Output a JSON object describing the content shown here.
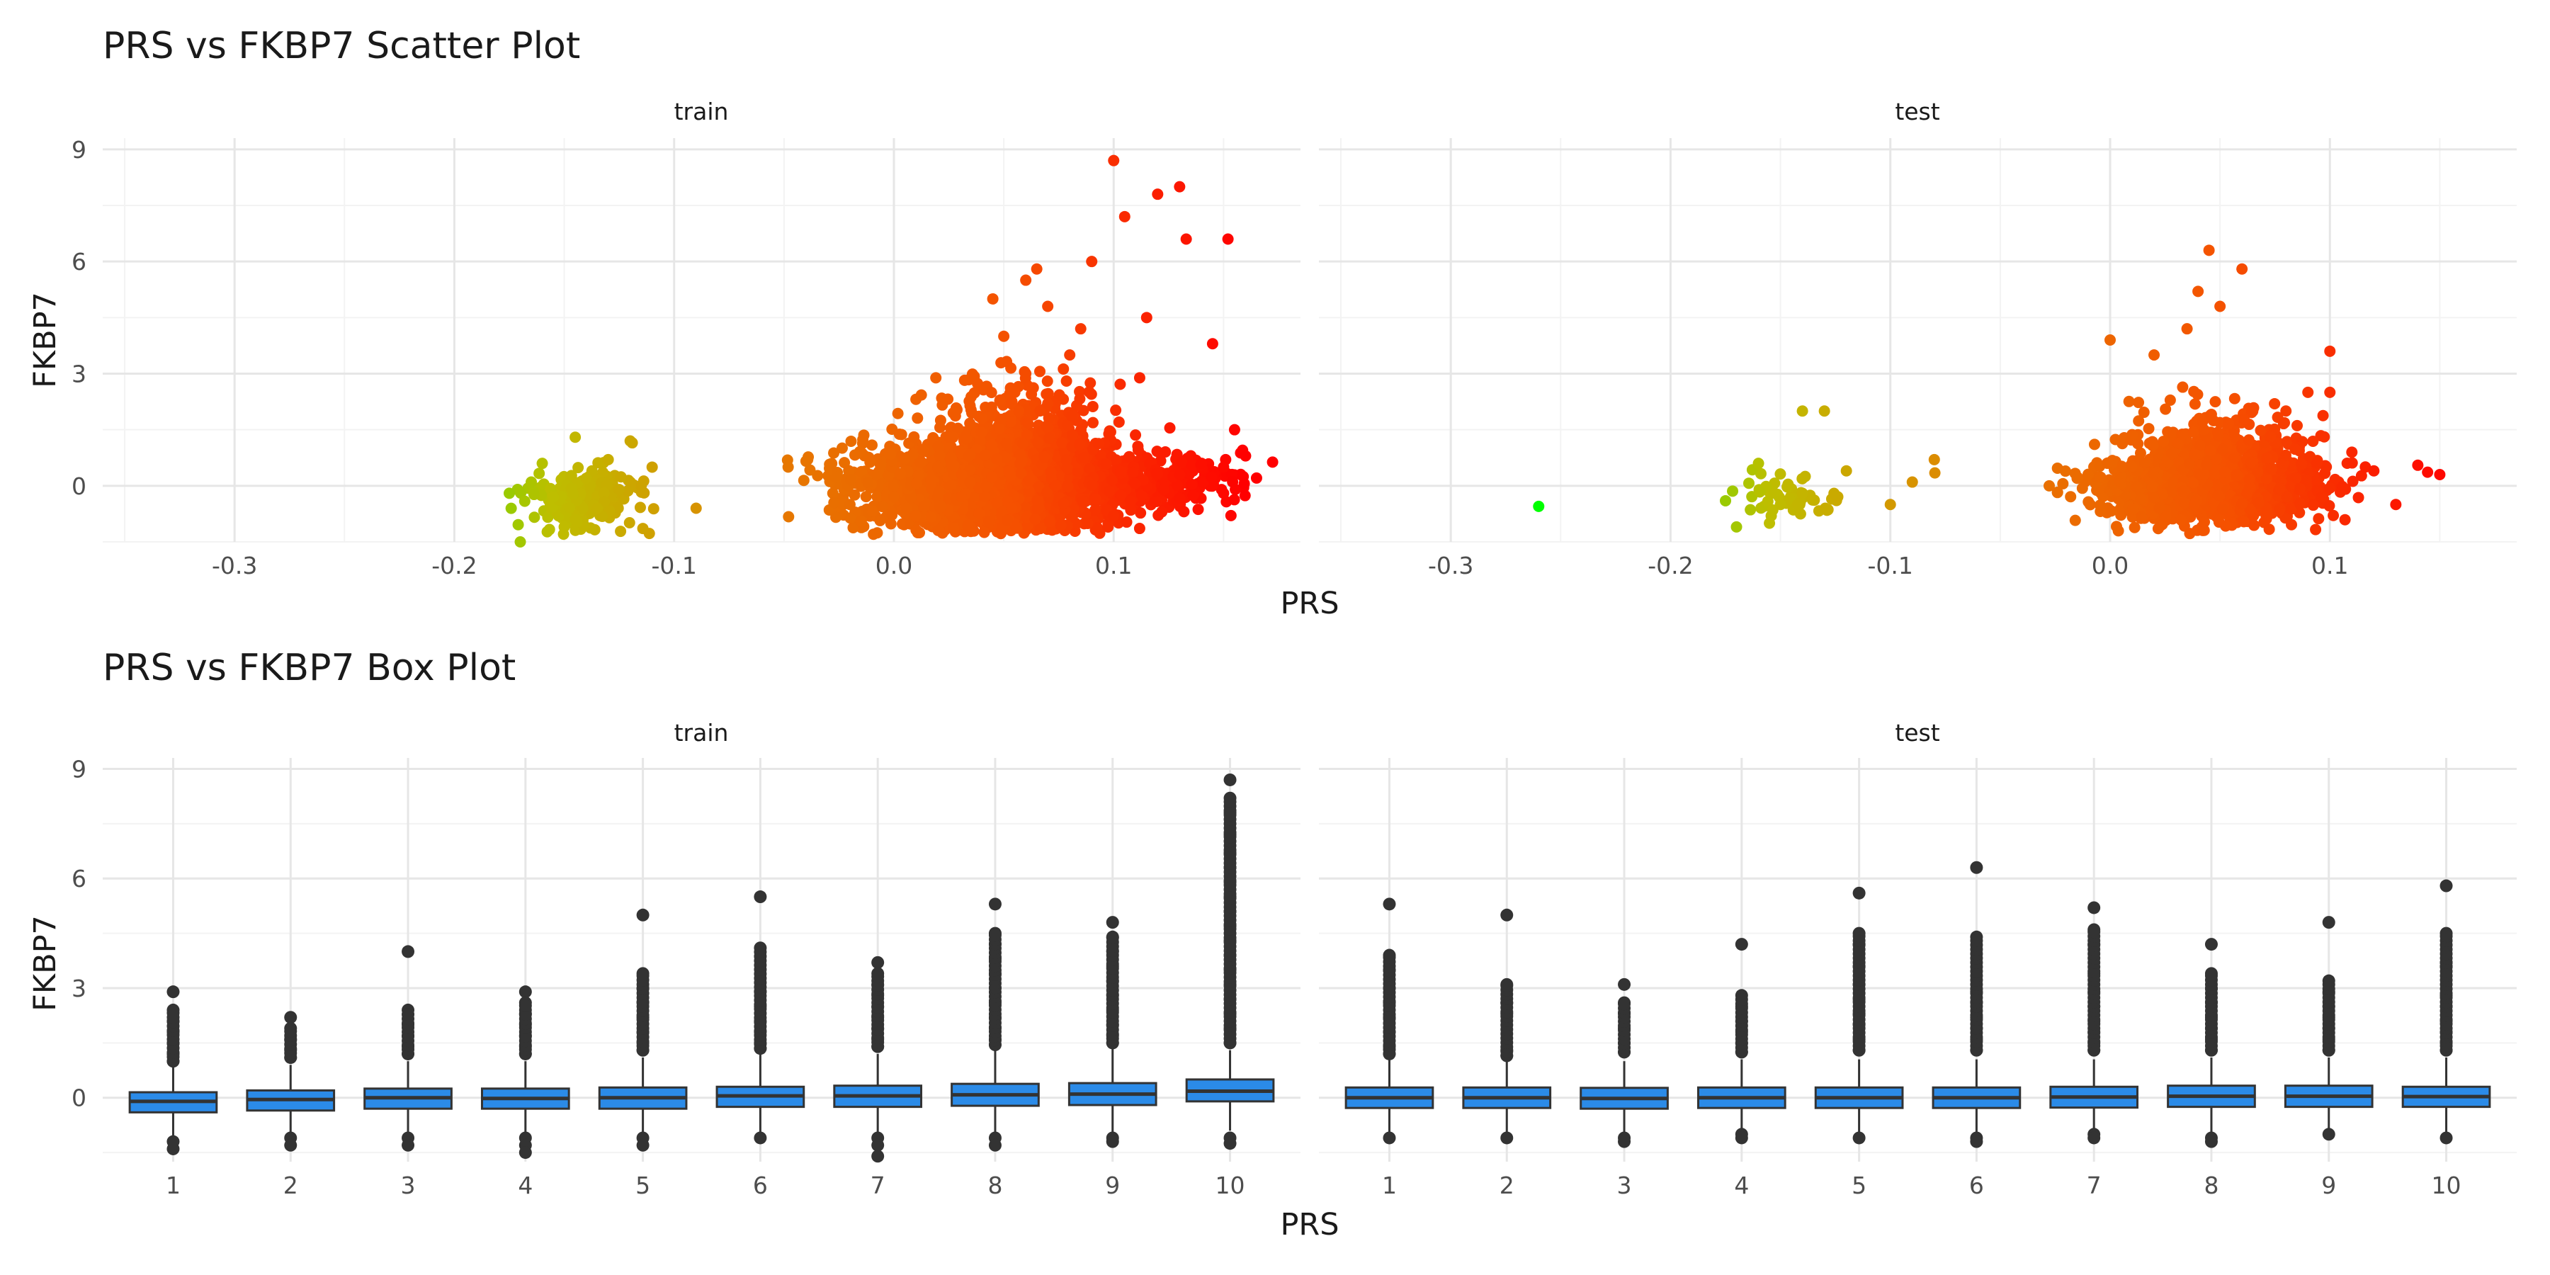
{
  "colors": {
    "grid_major": "#e6e6e6",
    "grid_minor": "#f3f3f3",
    "box_fill": "#2b8be8",
    "box_line": "#333333",
    "outlier": "#333333",
    "gradient": [
      "#00ff00",
      "#bebe00",
      "#e67800",
      "#f55000",
      "#ff0000"
    ]
  },
  "chart_data": [
    {
      "type": "scatter",
      "title": "PRS vs FKBP7 Scatter Plot",
      "xlabel": "PRS",
      "ylabel": "FKBP7",
      "xlim": [
        -0.36,
        0.185
      ],
      "ylim": [
        -1.5,
        9.3
      ],
      "x_ticks": [
        -0.3,
        -0.2,
        -0.1,
        0.0,
        0.1
      ],
      "x_tick_labels": [
        "-0.3",
        "-0.2",
        "-0.1",
        "0.0",
        "0.1"
      ],
      "y_ticks": [
        0,
        3,
        6,
        9
      ],
      "y_tick_labels": [
        "0",
        "3",
        "6",
        "9"
      ],
      "color_by": "PRS",
      "color_range": [
        -0.26,
        0.16
      ],
      "grid": true,
      "legend": "none",
      "panels": [
        {
          "name": "train",
          "points": [
            [
              -0.145,
              1.3
            ],
            [
              -0.12,
              1.2
            ],
            [
              -0.16,
              0.6
            ],
            [
              -0.13,
              0.7
            ],
            [
              -0.175,
              -0.2
            ],
            [
              -0.17,
              -1.5
            ],
            [
              -0.15,
              -1.1
            ],
            [
              -0.11,
              0.5
            ],
            [
              -0.09,
              -0.6
            ],
            [
              -0.14,
              0.2
            ],
            [
              -0.155,
              -0.3
            ],
            [
              -0.125,
              -0.1
            ],
            [
              -0.135,
              -0.6
            ],
            [
              -0.165,
              0.1
            ],
            [
              -0.145,
              -0.9
            ],
            [
              -0.115,
              0.0
            ],
            [
              -0.0,
              -0.3
            ],
            [
              0.02,
              0.5
            ],
            [
              0.04,
              1.8
            ],
            [
              0.055,
              2.5
            ],
            [
              0.06,
              3.0
            ],
            [
              0.07,
              2.2
            ],
            [
              0.05,
              4.0
            ],
            [
              0.045,
              5.0
            ],
            [
              0.06,
              5.5
            ],
            [
              0.07,
              4.8
            ],
            [
              0.085,
              4.2
            ],
            [
              0.09,
              6.0
            ],
            [
              0.1,
              8.7
            ],
            [
              0.105,
              7.2
            ],
            [
              0.12,
              7.8
            ],
            [
              0.13,
              8.0
            ],
            [
              0.133,
              6.6
            ],
            [
              0.152,
              6.6
            ],
            [
              0.145,
              3.8
            ],
            [
              0.115,
              4.5
            ],
            [
              0.15,
              0.5
            ],
            [
              0.155,
              1.5
            ],
            [
              0.16,
              0.8
            ],
            [
              0.14,
              0.6
            ],
            [
              0.13,
              0.3
            ],
            [
              -0.02,
              -0.5
            ],
            [
              0.1,
              -0.8
            ],
            [
              0.15,
              -0.2
            ],
            [
              0.08,
              3.5
            ],
            [
              0.065,
              5.8
            ]
          ]
        },
        {
          "name": "test",
          "points": [
            [
              -0.26,
              -0.55
            ],
            [
              -0.14,
              2.0
            ],
            [
              -0.13,
              2.0
            ],
            [
              -0.16,
              0.6
            ],
            [
              -0.175,
              -0.4
            ],
            [
              -0.17,
              -1.1
            ],
            [
              -0.15,
              -0.5
            ],
            [
              -0.12,
              0.4
            ],
            [
              -0.09,
              0.1
            ],
            [
              -0.08,
              0.7
            ],
            [
              -0.1,
              -0.5
            ],
            [
              -0.14,
              -0.2
            ],
            [
              -0.155,
              -1.0
            ],
            [
              0.045,
              6.3
            ],
            [
              0.04,
              5.2
            ],
            [
              0.06,
              5.8
            ],
            [
              0.05,
              4.8
            ],
            [
              0.0,
              3.9
            ],
            [
              0.02,
              3.5
            ],
            [
              0.1,
              3.6
            ],
            [
              0.09,
              2.5
            ],
            [
              0.1,
              2.5
            ],
            [
              0.14,
              0.55
            ],
            [
              0.15,
              0.3
            ],
            [
              0.12,
              0.4
            ],
            [
              0.13,
              -0.5
            ],
            [
              -0.015,
              0.2
            ],
            [
              0.035,
              4.2
            ],
            [
              0.08,
              2.0
            ],
            [
              0.11,
              0.9
            ]
          ]
        }
      ]
    },
    {
      "type": "box",
      "title": "PRS vs FKBP7 Box Plot",
      "xlabel": "PRS",
      "ylabel": "FKBP7",
      "categories": [
        "1",
        "2",
        "3",
        "4",
        "5",
        "6",
        "7",
        "8",
        "9",
        "10"
      ],
      "ylim": [
        -1.75,
        9.3
      ],
      "y_ticks": [
        0,
        3,
        6,
        9
      ],
      "y_tick_labels": [
        "0",
        "3",
        "6",
        "9"
      ],
      "grid": true,
      "legend": "none",
      "panels": [
        {
          "name": "train",
          "boxes": [
            {
              "q1": -0.4,
              "median": -0.1,
              "q3": 0.15,
              "lower": -1.1,
              "upper": 0.85,
              "outliers": [
                2.9,
                2.4,
                2.1,
                1.8,
                1.5,
                1.2,
                1.0,
                -1.2,
                -1.4
              ]
            },
            {
              "q1": -0.35,
              "median": -0.05,
              "q3": 0.2,
              "lower": -1.0,
              "upper": 0.9,
              "outliers": [
                2.2,
                1.9,
                1.6,
                1.3,
                1.1,
                -1.1,
                -1.3
              ]
            },
            {
              "q1": -0.3,
              "median": 0.0,
              "q3": 0.25,
              "lower": -1.0,
              "upper": 1.0,
              "outliers": [
                4.0,
                2.4,
                2.0,
                1.7,
                1.4,
                1.2,
                -1.1,
                -1.3
              ]
            },
            {
              "q1": -0.3,
              "median": -0.02,
              "q3": 0.25,
              "lower": -1.0,
              "upper": 1.0,
              "outliers": [
                2.9,
                2.6,
                2.3,
                2.0,
                1.7,
                1.4,
                1.2,
                -1.1,
                -1.3,
                -1.5
              ]
            },
            {
              "q1": -0.3,
              "median": 0.0,
              "q3": 0.28,
              "lower": -1.0,
              "upper": 1.1,
              "outliers": [
                5.0,
                3.4,
                3.0,
                2.6,
                2.2,
                1.8,
                1.5,
                1.3,
                -1.1,
                -1.3
              ]
            },
            {
              "q1": -0.25,
              "median": 0.05,
              "q3": 0.3,
              "lower": -1.0,
              "upper": 1.2,
              "outliers": [
                5.5,
                4.1,
                2.9,
                2.5,
                2.1,
                1.8,
                1.5,
                1.35,
                -1.1
              ]
            },
            {
              "q1": -0.25,
              "median": 0.05,
              "q3": 0.33,
              "lower": -1.0,
              "upper": 1.2,
              "outliers": [
                3.7,
                3.4,
                3.1,
                2.8,
                2.5,
                2.2,
                1.9,
                1.6,
                1.4,
                -1.1,
                -1.3,
                -1.6
              ]
            },
            {
              "q1": -0.22,
              "median": 0.08,
              "q3": 0.38,
              "lower": -1.0,
              "upper": 1.3,
              "outliers": [
                5.3,
                4.5,
                4.2,
                3.8,
                3.4,
                3.0,
                2.6,
                2.2,
                1.9,
                1.6,
                1.45,
                -1.1,
                -1.3
              ]
            },
            {
              "q1": -0.2,
              "median": 0.1,
              "q3": 0.4,
              "lower": -1.0,
              "upper": 1.4,
              "outliers": [
                4.8,
                4.4,
                4.0,
                3.6,
                3.2,
                2.8,
                2.4,
                2.0,
                1.7,
                1.5,
                -1.1,
                -1.2
              ]
            },
            {
              "q1": -0.1,
              "median": 0.18,
              "q3": 0.5,
              "lower": -0.9,
              "upper": 1.3,
              "outliers": [
                8.7,
                8.2,
                7.8,
                7.2,
                6.7,
                6.3,
                5.9,
                5.5,
                5.1,
                4.7,
                4.3,
                3.9,
                3.5,
                3.1,
                2.7,
                2.3,
                1.9,
                1.5,
                -1.1,
                -1.25
              ]
            }
          ]
        },
        {
          "name": "test",
          "boxes": [
            {
              "q1": -0.28,
              "median": 0.0,
              "q3": 0.28,
              "lower": -1.0,
              "upper": 1.05,
              "outliers": [
                5.3,
                3.9,
                3.5,
                3.0,
                2.6,
                2.2,
                1.8,
                1.4,
                1.2,
                -1.1
              ]
            },
            {
              "q1": -0.28,
              "median": 0.0,
              "q3": 0.28,
              "lower": -1.0,
              "upper": 1.05,
              "outliers": [
                5.0,
                3.1,
                2.6,
                2.3,
                1.3,
                1.15,
                -1.1
              ]
            },
            {
              "q1": -0.3,
              "median": -0.02,
              "q3": 0.27,
              "lower": -1.0,
              "upper": 1.0,
              "outliers": [
                3.1,
                2.6,
                2.3,
                1.9,
                1.5,
                1.25,
                -1.1,
                -1.2
              ]
            },
            {
              "q1": -0.28,
              "median": 0.0,
              "q3": 0.28,
              "lower": -1.0,
              "upper": 1.05,
              "outliers": [
                4.2,
                2.8,
                2.5,
                2.1,
                1.8,
                1.5,
                1.25,
                -1.0,
                -1.1
              ]
            },
            {
              "q1": -0.28,
              "median": 0.0,
              "q3": 0.28,
              "lower": -1.0,
              "upper": 1.05,
              "outliers": [
                5.6,
                4.5,
                4.2,
                3.6,
                3.1,
                2.7,
                2.3,
                2.0,
                1.6,
                1.3,
                -1.1
              ]
            },
            {
              "q1": -0.28,
              "median": 0.0,
              "q3": 0.28,
              "lower": -1.0,
              "upper": 1.05,
              "outliers": [
                6.3,
                4.4,
                2.9,
                2.6,
                2.2,
                1.9,
                1.6,
                1.3,
                -1.1,
                -1.2
              ]
            },
            {
              "q1": -0.27,
              "median": 0.02,
              "q3": 0.3,
              "lower": -1.0,
              "upper": 1.05,
              "outliers": [
                5.2,
                4.6,
                4.2,
                3.4,
                2.9,
                2.5,
                2.1,
                1.8,
                1.5,
                1.3,
                -1.0,
                -1.1
              ]
            },
            {
              "q1": -0.25,
              "median": 0.04,
              "q3": 0.33,
              "lower": -1.0,
              "upper": 1.1,
              "outliers": [
                4.2,
                3.4,
                3.0,
                2.6,
                2.2,
                1.9,
                1.6,
                1.3,
                -1.1,
                -1.2
              ]
            },
            {
              "q1": -0.25,
              "median": 0.04,
              "q3": 0.33,
              "lower": -1.0,
              "upper": 1.1,
              "outliers": [
                4.8,
                3.2,
                2.9,
                2.5,
                2.2,
                1.9,
                1.6,
                1.3,
                -1.0
              ]
            },
            {
              "q1": -0.25,
              "median": 0.03,
              "q3": 0.3,
              "lower": -1.0,
              "upper": 1.1,
              "outliers": [
                5.8,
                4.5,
                3.7,
                3.6,
                2.8,
                2.5,
                2.1,
                1.8,
                1.5,
                1.3,
                -1.1
              ]
            }
          ]
        }
      ]
    }
  ]
}
